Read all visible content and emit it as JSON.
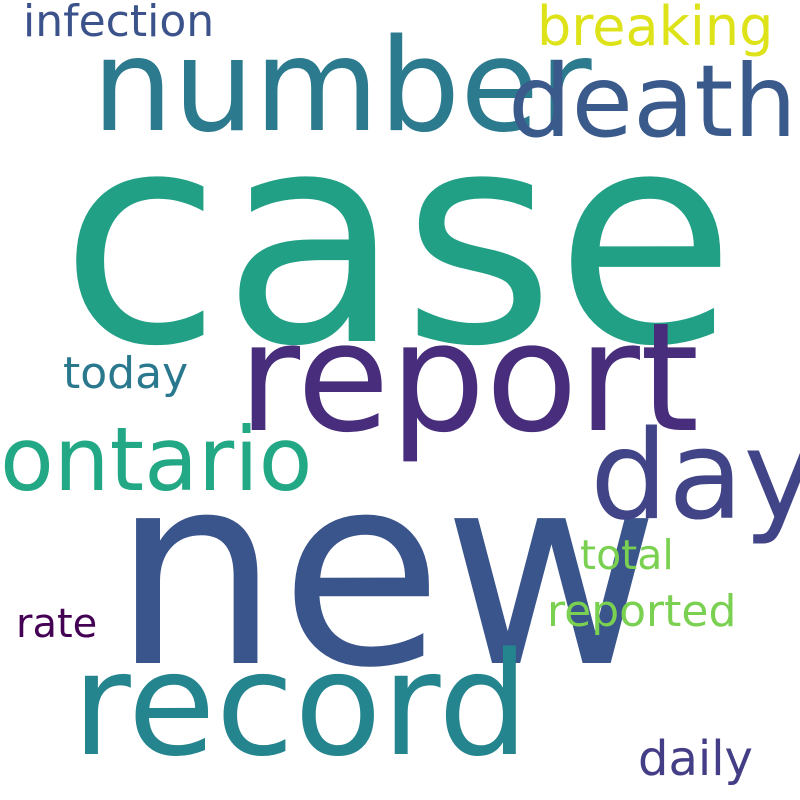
{
  "words": [
    {
      "id": "case",
      "text": "case",
      "color": "#21a086"
    },
    {
      "id": "new",
      "text": "new",
      "color": "#3a548c"
    },
    {
      "id": "report",
      "text": "report",
      "color": "#472d7b"
    },
    {
      "id": "number",
      "text": "number",
      "color": "#2b7a8e"
    },
    {
      "id": "record",
      "text": "record",
      "color": "#25858e"
    },
    {
      "id": "death",
      "text": "death",
      "color": "#3b5a8c"
    },
    {
      "id": "day",
      "text": "day",
      "color": "#414487"
    },
    {
      "id": "ontario",
      "text": "ontario",
      "color": "#22a884"
    },
    {
      "id": "breaking",
      "text": "breaking",
      "color": "#dde318"
    },
    {
      "id": "infection",
      "text": "infection",
      "color": "#3b528b"
    },
    {
      "id": "today",
      "text": "today",
      "color": "#2a788e"
    },
    {
      "id": "daily",
      "text": "daily",
      "color": "#433e85"
    },
    {
      "id": "reported",
      "text": "reported",
      "color": "#7ad151"
    },
    {
      "id": "total",
      "text": "total",
      "color": "#7ad151"
    },
    {
      "id": "rate",
      "text": "rate",
      "color": "#440154"
    }
  ]
}
